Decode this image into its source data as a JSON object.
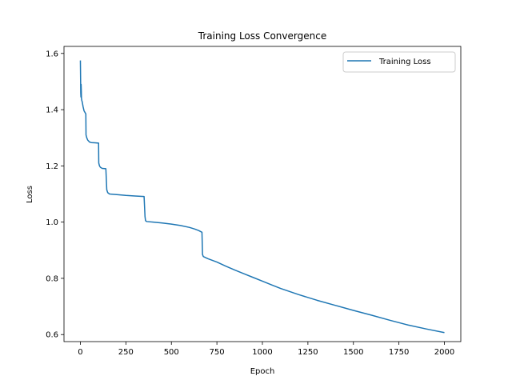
{
  "chart_data": {
    "type": "line",
    "title": "Training Loss Convergence",
    "xlabel": "Epoch",
    "ylabel": "Loss",
    "xlim": [
      -90,
      2090
    ],
    "ylim": [
      0.575,
      1.625
    ],
    "xticks": [
      0,
      250,
      500,
      750,
      1000,
      1250,
      1500,
      1750,
      2000
    ],
    "yticks": [
      0.6,
      0.8,
      1.0,
      1.2,
      1.4,
      1.6
    ],
    "grid": false,
    "legend_position": "top-right",
    "series": [
      {
        "name": "Training Loss",
        "color": "#1f77b4",
        "x": [
          0,
          1,
          2,
          3,
          4,
          5,
          6,
          8,
          10,
          15,
          20,
          30,
          31,
          35,
          40,
          50,
          60,
          80,
          100,
          101,
          105,
          110,
          120,
          140,
          145,
          150,
          160,
          200,
          250,
          300,
          350,
          355,
          358,
          365,
          400,
          450,
          500,
          550,
          600,
          630,
          650,
          668,
          671,
          675,
          680,
          700,
          750,
          800,
          850,
          900,
          950,
          1000,
          1050,
          1100,
          1200,
          1300,
          1400,
          1500,
          1600,
          1700,
          1800,
          1900,
          2000
        ],
        "y": [
          1.575,
          1.52,
          1.46,
          1.445,
          1.49,
          1.47,
          1.44,
          1.432,
          1.428,
          1.41,
          1.396,
          1.385,
          1.31,
          1.3,
          1.292,
          1.285,
          1.283,
          1.282,
          1.281,
          1.21,
          1.2,
          1.195,
          1.191,
          1.19,
          1.115,
          1.105,
          1.1,
          1.098,
          1.095,
          1.093,
          1.091,
          1.02,
          1.005,
          1.002,
          1.0,
          0.997,
          0.993,
          0.988,
          0.981,
          0.975,
          0.97,
          0.964,
          0.885,
          0.878,
          0.876,
          0.87,
          0.858,
          0.843,
          0.829,
          0.816,
          0.803,
          0.79,
          0.777,
          0.764,
          0.742,
          0.722,
          0.704,
          0.686,
          0.669,
          0.651,
          0.634,
          0.62,
          0.607
        ]
      }
    ]
  }
}
